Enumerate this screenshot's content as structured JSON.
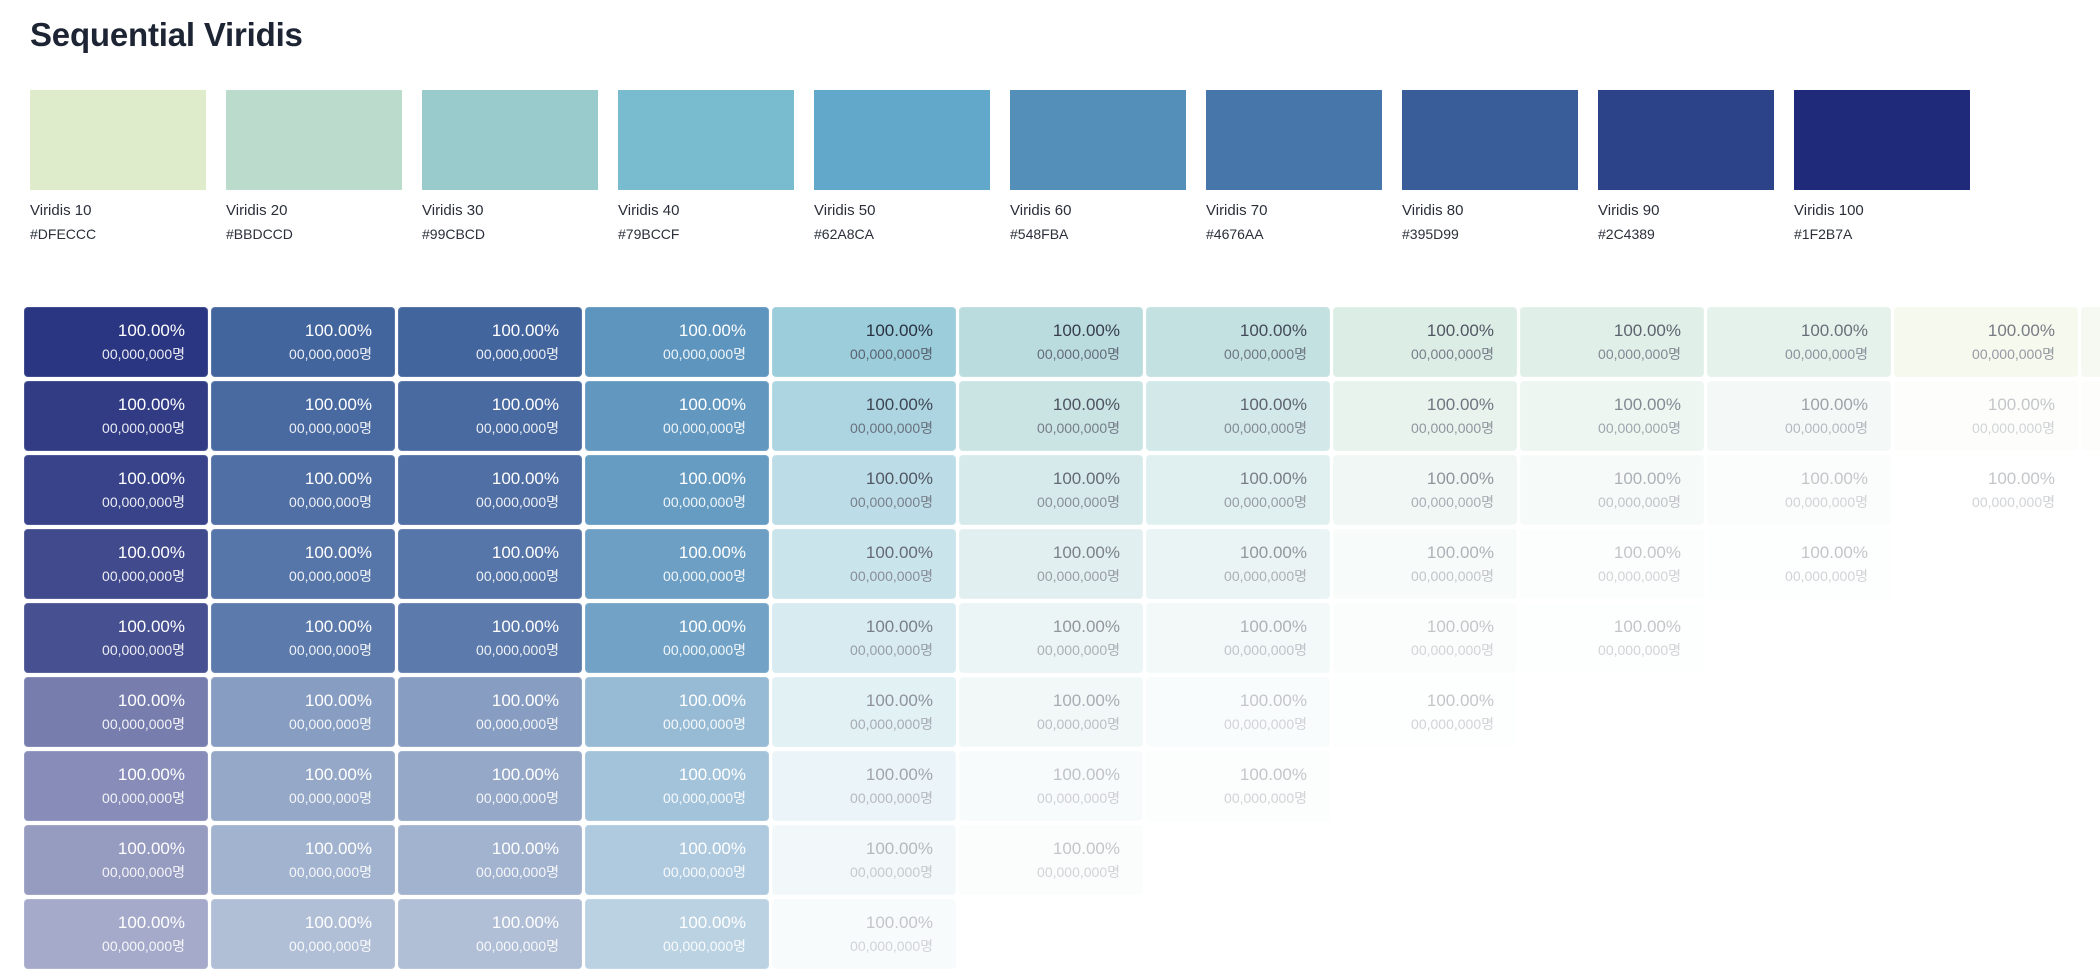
{
  "title": "Sequential Viridis",
  "swatches": [
    {
      "name": "Viridis 10",
      "hex": "#DFECCC"
    },
    {
      "name": "Viridis 20",
      "hex": "#BBDCCD"
    },
    {
      "name": "Viridis 30",
      "hex": "#99CBCD"
    },
    {
      "name": "Viridis 40",
      "hex": "#79BCCF"
    },
    {
      "name": "Viridis 50",
      "hex": "#62A8CA"
    },
    {
      "name": "Viridis 60",
      "hex": "#548FBA"
    },
    {
      "name": "Viridis 70",
      "hex": "#4676AA"
    },
    {
      "name": "Viridis 80",
      "hex": "#395D99"
    },
    {
      "name": "Viridis 90",
      "hex": "#2C4389"
    },
    {
      "name": "Viridis 100",
      "hex": "#1F2B7A"
    }
  ],
  "cell_text": {
    "percent": "100.00%",
    "count": "00,000,000명"
  },
  "grid": {
    "column_colors": [
      "#1F2B7A",
      "#395D99",
      "#395D99",
      "#548FBA",
      "#79BCCF",
      "#99CBCD",
      "#99CBCD",
      "#BBDCCD",
      "#BBDCCD",
      "#BBDCCD",
      "#DFECCC",
      "#DFECCC"
    ],
    "column_row_counts": [
      9,
      9,
      9,
      9,
      9,
      8,
      7,
      6,
      5,
      4,
      3,
      3
    ],
    "row_count": 9
  }
}
